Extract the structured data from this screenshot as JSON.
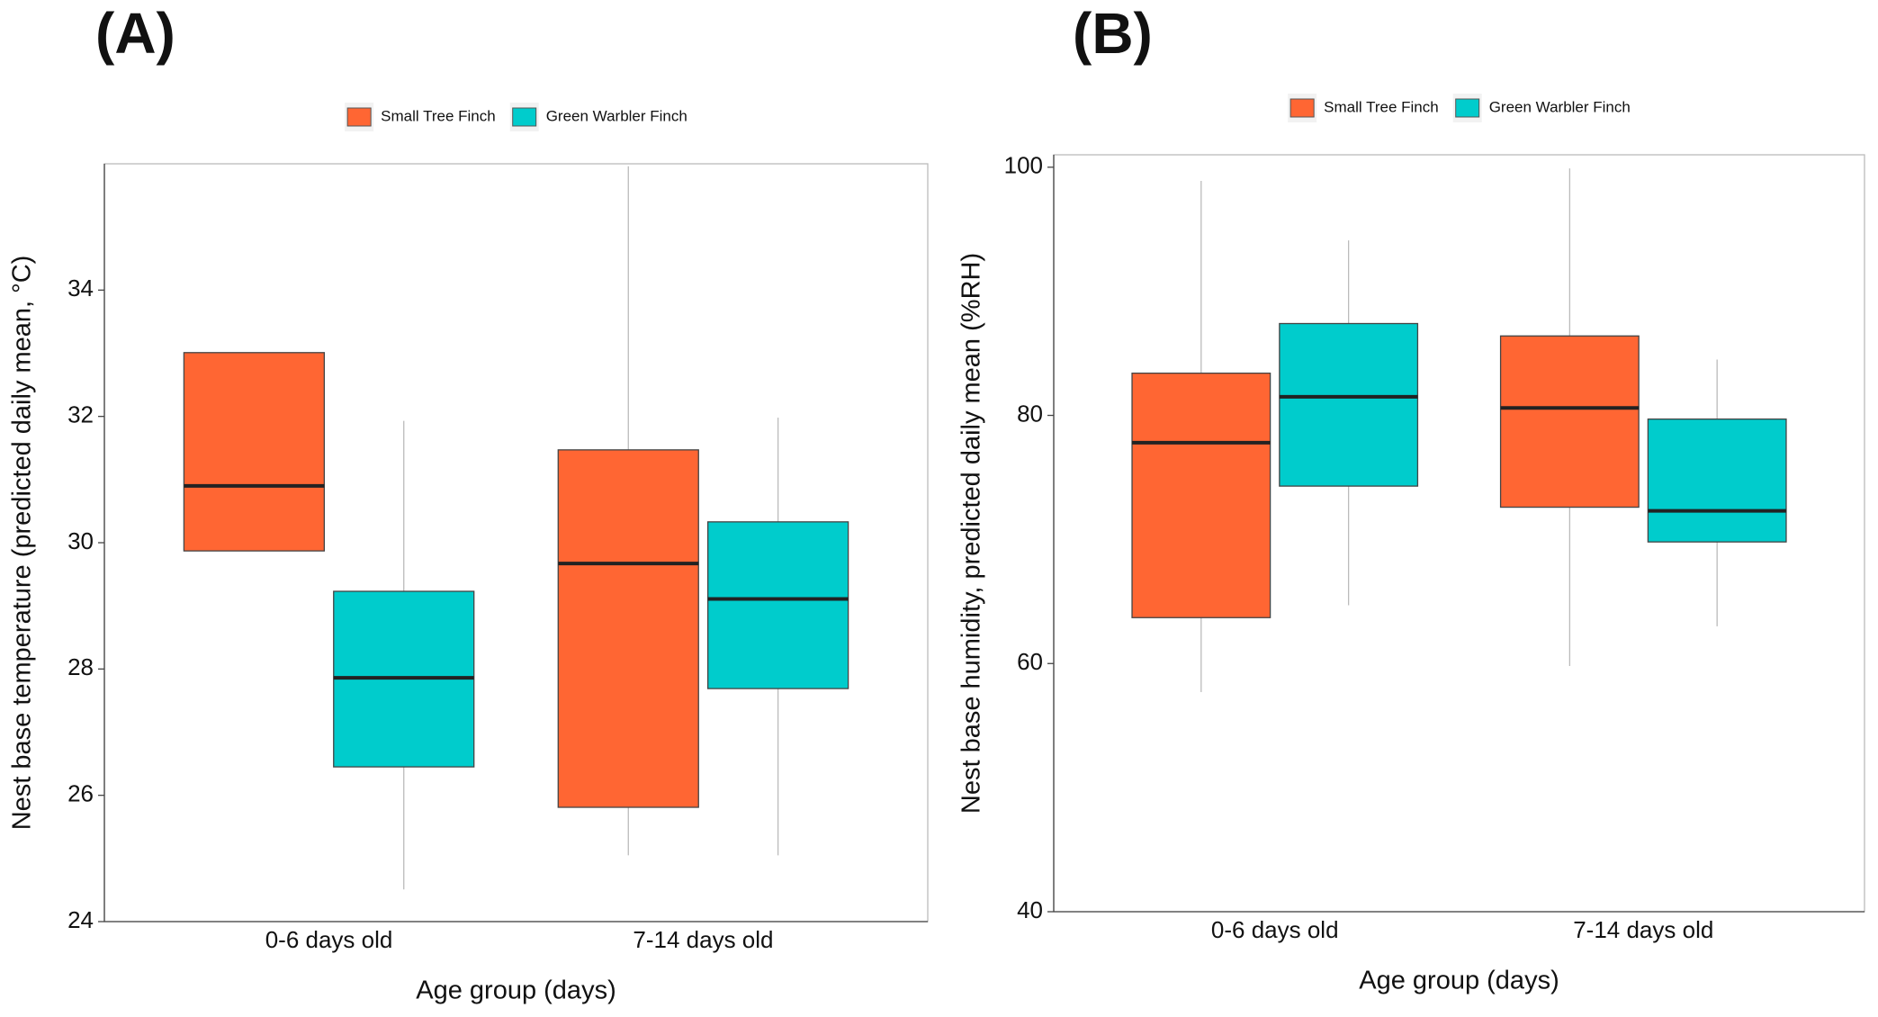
{
  "chart_data": [
    {
      "type": "box",
      "panel_label": "(A)",
      "x_label": "Age group (days)",
      "y_label": "Nest base temperature (predicted daily mean, °C)",
      "categories": [
        "0-6 days old",
        "7-14 days old"
      ],
      "legend": "top",
      "ylim": [
        24,
        36
      ],
      "yticks": [
        24,
        26,
        28,
        30,
        32,
        34
      ],
      "series": [
        {
          "name": "Small Tree Finch",
          "color": "#ff6633",
          "values": [
            {
              "low": null,
              "q1": 29.87,
              "median": 30.9,
              "q3": 33.01,
              "high": null
            },
            {
              "low": 25.05,
              "q1": 25.81,
              "median": 29.67,
              "q3": 31.47,
              "high": 35.96
            }
          ]
        },
        {
          "name": "Green Warbler Finch",
          "color": "#00cccc",
          "values": [
            {
              "low": 24.51,
              "q1": 26.45,
              "median": 27.86,
              "q3": 29.23,
              "high": 31.93
            },
            {
              "low": 25.05,
              "q1": 27.69,
              "median": 29.11,
              "q3": 30.33,
              "high": 31.98
            }
          ]
        }
      ]
    },
    {
      "type": "box",
      "panel_label": "(B)",
      "x_label": "Age group (days)",
      "y_label": "Nest base humidity, predicted daily mean (%RH)",
      "categories": [
        "0-6 days old",
        "7-14 days old"
      ],
      "legend": "top",
      "ylim": [
        40,
        101
      ],
      "yticks": [
        40,
        60,
        80,
        100
      ],
      "series": [
        {
          "name": "Small Tree Finch",
          "color": "#ff6633",
          "values": [
            {
              "low": 57.7,
              "q1": 63.7,
              "median": 77.8,
              "q3": 83.4,
              "high": 98.9
            },
            {
              "low": 59.8,
              "q1": 72.6,
              "median": 80.6,
              "q3": 86.4,
              "high": 99.9
            }
          ]
        },
        {
          "name": "Green Warbler Finch",
          "color": "#00cccc",
          "values": [
            {
              "low": 64.7,
              "q1": 74.3,
              "median": 81.5,
              "q3": 87.4,
              "high": 94.1
            },
            {
              "low": 63.0,
              "q1": 69.8,
              "median": 72.3,
              "q3": 79.7,
              "high": 84.5
            }
          ]
        }
      ]
    }
  ]
}
